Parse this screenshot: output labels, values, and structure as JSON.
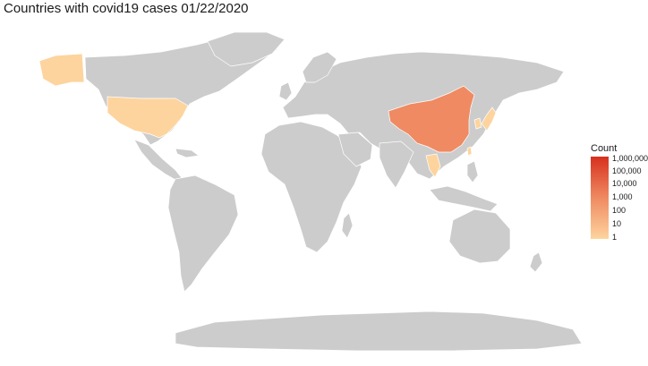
{
  "map": {
    "title": "Countries with covid19 cases 01/22/2020",
    "legend": {
      "title": "Count",
      "ticks": [
        "1,000,000",
        "100,000",
        "10,000",
        "1,000",
        "100",
        "10",
        "1"
      ],
      "color_low": "#fdd49e",
      "color_high": "#d7301f"
    },
    "default_country_color": "#cccccc",
    "highlighted_countries": [
      {
        "country": "United States",
        "color": "#fdd49e"
      },
      {
        "country": "China",
        "color": "#ef8a62"
      },
      {
        "country": "Japan",
        "color": "#fdd49e"
      },
      {
        "country": "South Korea",
        "color": "#fdd49e"
      },
      {
        "country": "Thailand",
        "color": "#fdd49e"
      },
      {
        "country": "Taiwan",
        "color": "#fdd49e"
      }
    ]
  }
}
